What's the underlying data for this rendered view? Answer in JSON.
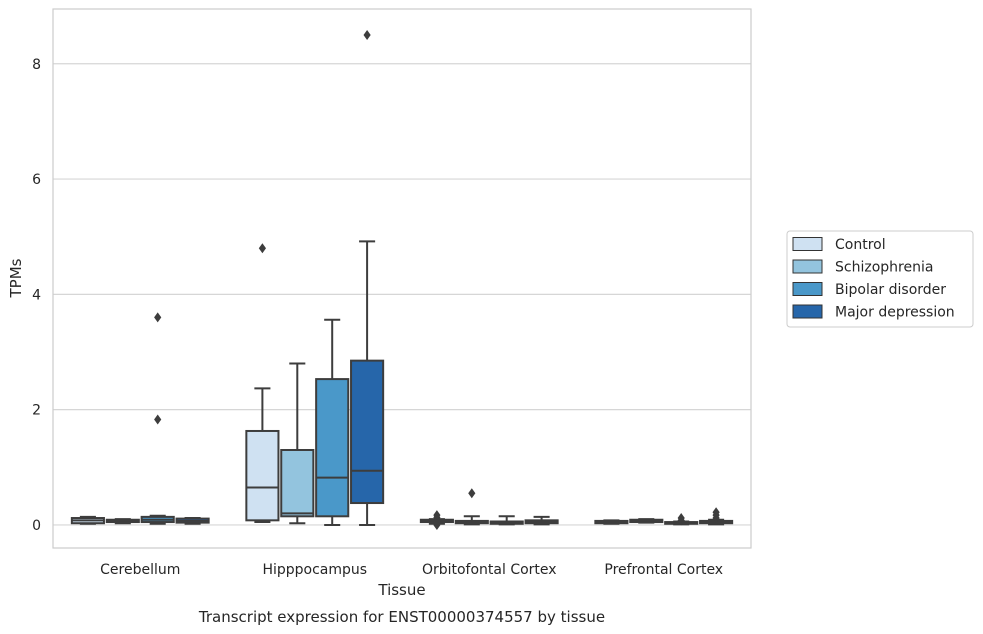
{
  "caption": "Transcript expression for ENST00000374557 by tissue",
  "chart_data": {
    "type": "box",
    "title": "",
    "xlabel": "Tissue",
    "ylabel": "TPMs",
    "ylim": [
      -0.4,
      8.95
    ],
    "yticks": [
      0,
      2,
      4,
      6,
      8
    ],
    "grid": "horizontal",
    "legend_position": "right",
    "categories": [
      "Cerebellum",
      "Hipppocampus",
      "Orbitofontal Cortex",
      "Prefrontal Cortex"
    ],
    "series": [
      {
        "name": "Control",
        "color": "#cfe1f2",
        "boxes": [
          {
            "min": 0.02,
            "q1": 0.03,
            "median": 0.08,
            "q3": 0.12,
            "max": 0.14,
            "outliers": []
          },
          {
            "min": 0.05,
            "q1": 0.08,
            "median": 0.65,
            "q3": 1.63,
            "max": 2.37,
            "outliers": [
              4.8
            ]
          },
          {
            "min": 0.02,
            "q1": 0.05,
            "median": 0.07,
            "q3": 0.09,
            "max": 0.1,
            "outliers": [
              0.0,
              0.05,
              0.1,
              0.13,
              0.17
            ]
          },
          {
            "min": 0.02,
            "q1": 0.03,
            "median": 0.05,
            "q3": 0.07,
            "max": 0.08,
            "outliers": []
          }
        ]
      },
      {
        "name": "Schizophrenia",
        "color": "#93c4de",
        "boxes": [
          {
            "min": 0.03,
            "q1": 0.05,
            "median": 0.07,
            "q3": 0.09,
            "max": 0.1,
            "outliers": []
          },
          {
            "min": 0.03,
            "q1": 0.15,
            "median": 0.2,
            "q3": 1.3,
            "max": 2.8,
            "outliers": []
          },
          {
            "min": 0.01,
            "q1": 0.03,
            "median": 0.05,
            "q3": 0.07,
            "max": 0.15,
            "outliers": [
              0.55
            ]
          },
          {
            "min": 0.04,
            "q1": 0.05,
            "median": 0.07,
            "q3": 0.09,
            "max": 0.1,
            "outliers": []
          }
        ]
      },
      {
        "name": "Bipolar disorder",
        "color": "#4a98c9",
        "boxes": [
          {
            "min": 0.02,
            "q1": 0.05,
            "median": 0.09,
            "q3": 0.14,
            "max": 0.16,
            "outliers": [
              1.83,
              3.6
            ]
          },
          {
            "min": 0.0,
            "q1": 0.15,
            "median": 0.82,
            "q3": 2.53,
            "max": 3.56,
            "outliers": []
          },
          {
            "min": 0.01,
            "q1": 0.02,
            "median": 0.04,
            "q3": 0.06,
            "max": 0.15,
            "outliers": []
          },
          {
            "min": 0.01,
            "q1": 0.02,
            "median": 0.03,
            "q3": 0.05,
            "max": 0.06,
            "outliers": [
              0.08,
              0.12
            ]
          }
        ]
      },
      {
        "name": "Major depression",
        "color": "#2666aa",
        "boxes": [
          {
            "min": 0.02,
            "q1": 0.04,
            "median": 0.07,
            "q3": 0.11,
            "max": 0.12,
            "outliers": []
          },
          {
            "min": 0.0,
            "q1": 0.38,
            "median": 0.94,
            "q3": 2.85,
            "max": 4.92,
            "outliers": [
              8.5
            ]
          },
          {
            "min": 0.01,
            "q1": 0.03,
            "median": 0.05,
            "q3": 0.08,
            "max": 0.14,
            "outliers": []
          },
          {
            "min": 0.01,
            "q1": 0.03,
            "median": 0.05,
            "q3": 0.07,
            "max": 0.09,
            "outliers": [
              0.12,
              0.17,
              0.22
            ]
          }
        ]
      }
    ]
  }
}
